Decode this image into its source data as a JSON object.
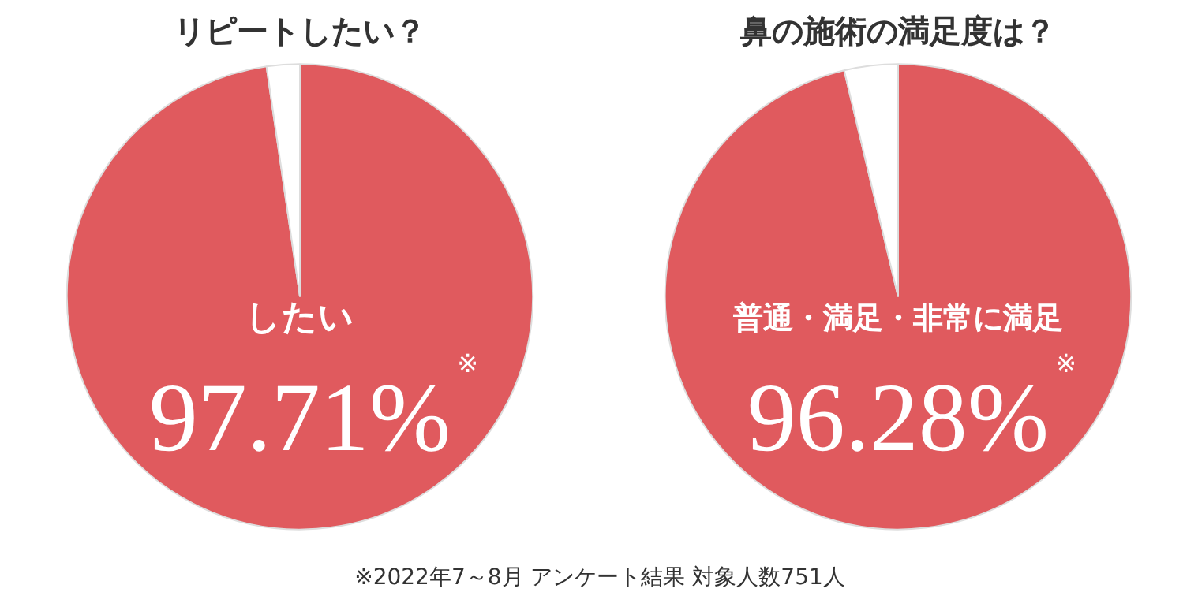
{
  "chart_data": [
    {
      "type": "pie",
      "title": "リピートしたい？",
      "categories": [
        "したい",
        null
      ],
      "values": [
        97.71,
        2.29
      ],
      "colors": [
        "#e05a5e",
        "#ffffff"
      ],
      "value_labels": [
        "97.71%",
        null
      ],
      "annotations": [
        "※",
        "※2022年7～8月 アンケート結果 対象人数751人"
      ]
    },
    {
      "type": "pie",
      "title": "鼻の施術の満足度は？",
      "categories": [
        "普通・満足・非常に満足",
        null
      ],
      "values": [
        96.28,
        3.72
      ],
      "colors": [
        "#e05a5e",
        "#ffffff"
      ],
      "value_labels": [
        "96.28%",
        null
      ],
      "annotations": [
        "※"
      ]
    }
  ]
}
